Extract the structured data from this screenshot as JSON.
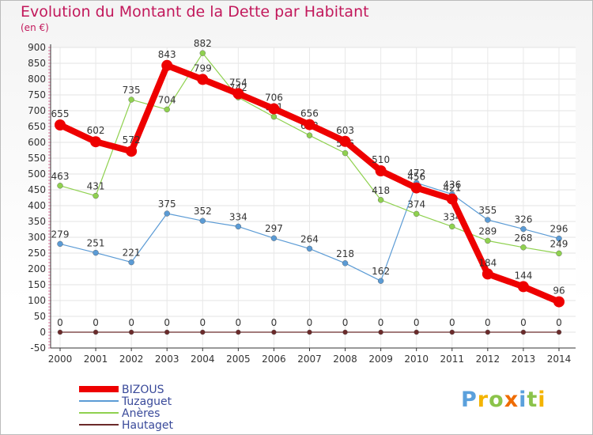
{
  "title": "Evolution du Montant de la Dette par Habitant",
  "subtitle": "(en €)",
  "logo": {
    "text": "Proxiti"
  },
  "chart_data": {
    "type": "line",
    "x": [
      2000,
      2001,
      2002,
      2003,
      2004,
      2005,
      2006,
      2007,
      2008,
      2009,
      2010,
      2011,
      2012,
      2013,
      2014
    ],
    "ylim": [
      -50,
      900
    ],
    "yticks": [
      -50,
      0,
      50,
      100,
      150,
      200,
      250,
      300,
      350,
      400,
      450,
      500,
      550,
      600,
      650,
      700,
      750,
      800,
      850,
      900
    ],
    "grid": true,
    "legend": "bottom-left",
    "series": [
      {
        "name": "Tuzaguet",
        "color": "#5b9bd5",
        "width": 1.2,
        "marker": 3.5,
        "values": [
          279,
          251,
          221,
          375,
          352,
          334,
          297,
          264,
          218,
          162,
          472,
          436,
          355,
          326,
          296
        ]
      },
      {
        "name": "Anères",
        "color": "#8fd14f",
        "width": 1.2,
        "marker": 3.5,
        "values": [
          463,
          431,
          735,
          704,
          882,
          742,
          681,
          622,
          566,
          418,
          374,
          334,
          289,
          268,
          249
        ]
      },
      {
        "name": "Hautaget",
        "color": "#6b2a2a",
        "width": 1.2,
        "marker": 3,
        "values": [
          0,
          0,
          0,
          0,
          0,
          0,
          0,
          0,
          0,
          0,
          0,
          0,
          0,
          0,
          0
        ]
      },
      {
        "name": "BIZOUS",
        "color": "#ee0000",
        "width": 8,
        "marker": 7,
        "values": [
          655,
          602,
          572,
          843,
          799,
          754,
          706,
          656,
          603,
          510,
          456,
          421,
          184,
          144,
          96
        ]
      }
    ],
    "legend_order": [
      "BIZOUS",
      "Tuzaguet",
      "Anères",
      "Hautaget"
    ]
  }
}
